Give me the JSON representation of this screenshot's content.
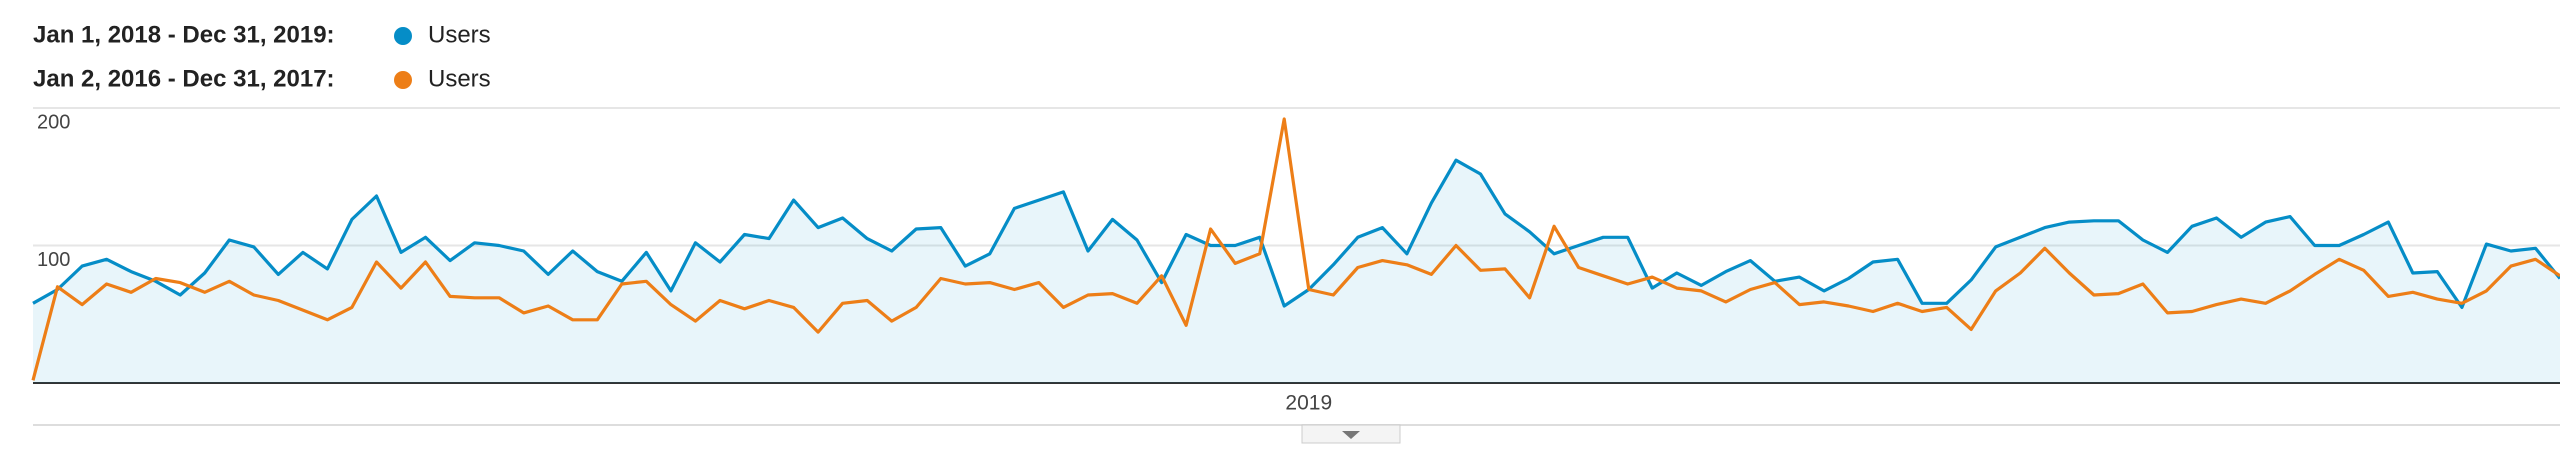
{
  "chart_data": {
    "type": "line",
    "categories": [
      null,
      null,
      null,
      null,
      null,
      null,
      null,
      null,
      null,
      null,
      null,
      null,
      null,
      null,
      null,
      null,
      null,
      null,
      null,
      null,
      null,
      null,
      null,
      null,
      null,
      null,
      null,
      null,
      null,
      null,
      null,
      null,
      null,
      null,
      null,
      null,
      null,
      null,
      null,
      null,
      null,
      null,
      null,
      null,
      null,
      null,
      null,
      null,
      null,
      null,
      null,
      null,
      "2019",
      null,
      null,
      null,
      null,
      null,
      null,
      null,
      null,
      null,
      null,
      null,
      null,
      null,
      null,
      null,
      null,
      null,
      null,
      null,
      null,
      null,
      null,
      null,
      null,
      null,
      null,
      null,
      null,
      null,
      null,
      null,
      null,
      null,
      null,
      null,
      null,
      null,
      null,
      null,
      null,
      null,
      null,
      null,
      null,
      null,
      null,
      null,
      null,
      null,
      null,
      null
    ],
    "series": [
      {
        "name": "Users",
        "range": "Jan 1, 2018 - Dec 31, 2019:",
        "color": "#058dc7",
        "values": [
          58,
          68,
          85,
          90,
          81,
          74,
          64,
          80,
          104,
          99,
          79,
          95,
          83,
          119,
          136,
          95,
          106,
          89,
          102,
          100,
          96,
          79,
          96,
          81,
          74,
          95,
          67,
          102,
          88,
          108,
          105,
          133,
          113,
          120,
          105,
          96,
          112,
          113,
          85,
          94,
          127,
          133,
          139,
          96,
          119,
          104,
          73,
          108,
          100,
          100,
          106,
          56,
          68,
          86,
          106,
          113,
          94,
          131,
          162,
          152,
          123,
          110,
          94,
          100,
          106,
          106,
          69,
          80,
          71,
          81,
          89,
          74,
          77,
          67,
          76,
          88,
          90,
          58,
          58,
          75,
          99,
          106,
          113,
          117,
          118,
          118,
          104,
          95,
          114,
          120,
          106,
          117,
          121,
          100,
          100,
          108,
          117,
          80,
          81,
          55,
          101,
          96,
          98,
          76
        ]
      },
      {
        "name": "Users",
        "range": "Jan 2, 2016 - Dec 31, 2017:",
        "color": "#ed7e17",
        "values": [
          2,
          70,
          57,
          72,
          66,
          76,
          73,
          66,
          74,
          64,
          60,
          53,
          46,
          55,
          88,
          69,
          88,
          63,
          62,
          62,
          51,
          56,
          46,
          46,
          72,
          74,
          57,
          45,
          60,
          54,
          60,
          55,
          37,
          58,
          60,
          45,
          55,
          76,
          72,
          73,
          68,
          73,
          55,
          64,
          65,
          58,
          78,
          42,
          112,
          87,
          94,
          192,
          68,
          64,
          84,
          89,
          86,
          79,
          100,
          82,
          83,
          62,
          114,
          84,
          78,
          72,
          77,
          69,
          67,
          59,
          68,
          73,
          57,
          59,
          56,
          52,
          58,
          52,
          55,
          39,
          67,
          80,
          98,
          80,
          64,
          65,
          72,
          51,
          52,
          57,
          61,
          58,
          67,
          79,
          90,
          82,
          63,
          66,
          61,
          58,
          67,
          85,
          90,
          78
        ]
      }
    ],
    "ylim": [
      0,
      200
    ],
    "yticks": [
      100,
      200
    ],
    "grid": true
  }
}
